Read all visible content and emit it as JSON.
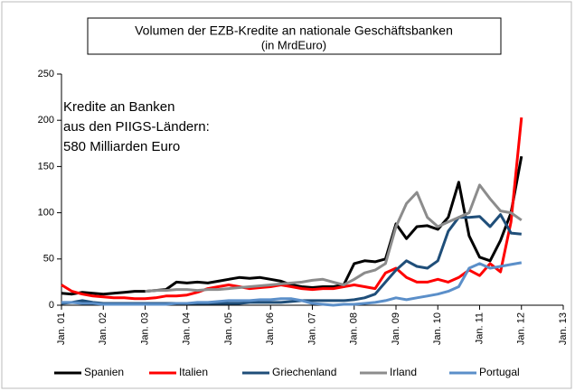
{
  "chart_data": {
    "type": "line",
    "title": [
      "Volumen der EZB-Kredite an nationale Geschäftsbanken",
      "(in MrdEuro)"
    ],
    "annotation": [
      "Kredite an Banken",
      "aus den PIIGS-Ländern:",
      "580 Milliarden Euro"
    ],
    "categories": [
      "Jan. 01",
      null,
      null,
      null,
      "Jan. 02",
      null,
      null,
      null,
      "Jan. 03",
      null,
      null,
      null,
      "Jan. 04",
      null,
      null,
      null,
      "Jan. 05",
      null,
      null,
      null,
      "Jan. 06",
      null,
      null,
      null,
      "Jan. 07",
      null,
      null,
      null,
      "Jan. 08",
      null,
      null,
      null,
      "Jan. 09",
      null,
      null,
      null,
      "Jan. 10",
      null,
      null,
      null,
      "Jan. 11",
      null,
      null,
      null,
      "Jan. 12",
      null,
      null,
      null,
      "Jan. 13"
    ],
    "series": [
      {
        "name": "Spanien",
        "color": "#000000",
        "values": [
          13,
          12,
          14,
          13,
          12,
          13,
          14,
          15,
          15,
          16,
          17,
          25,
          24,
          25,
          24,
          26,
          28,
          30,
          29,
          30,
          28,
          26,
          22,
          20,
          19,
          20,
          20,
          22,
          45,
          48,
          47,
          50,
          88,
          72,
          85,
          86,
          82,
          95,
          133,
          75,
          52,
          48,
          70,
          100,
          161,
          null,
          null,
          null,
          null
        ]
      },
      {
        "name": "Italien",
        "color": "#ff0000",
        "values": [
          22,
          15,
          12,
          10,
          9,
          8,
          8,
          7,
          7,
          8,
          10,
          10,
          11,
          14,
          18,
          20,
          22,
          20,
          18,
          19,
          20,
          22,
          20,
          18,
          17,
          18,
          18,
          20,
          22,
          20,
          18,
          35,
          40,
          30,
          25,
          25,
          28,
          25,
          30,
          38,
          32,
          45,
          36,
          90,
          203,
          null,
          null,
          null,
          null
        ]
      },
      {
        "name": "Griechenland",
        "color": "#1f4e79",
        "values": [
          2,
          3,
          5,
          3,
          2,
          2,
          2,
          2,
          2,
          2,
          2,
          2,
          2,
          2,
          2,
          2,
          2,
          2,
          3,
          3,
          3,
          3,
          4,
          5,
          5,
          5,
          5,
          5,
          6,
          8,
          12,
          25,
          38,
          48,
          42,
          40,
          48,
          80,
          95,
          95,
          96,
          85,
          98,
          78,
          77,
          null,
          null,
          null,
          null
        ]
      },
      {
        "name": "Irland",
        "color": "#8c8c8c",
        "values": [
          null,
          null,
          null,
          null,
          null,
          null,
          null,
          null,
          15,
          16,
          16,
          17,
          17,
          16,
          17,
          17,
          18,
          19,
          20,
          21,
          22,
          23,
          24,
          25,
          27,
          28,
          25,
          22,
          28,
          35,
          38,
          45,
          85,
          110,
          122,
          95,
          85,
          90,
          95,
          100,
          130,
          115,
          102,
          100,
          92,
          null,
          null,
          null,
          null
        ]
      },
      {
        "name": "Portugal",
        "color": "#5b8fc9",
        "values": [
          3,
          3,
          2,
          2,
          1,
          1,
          1,
          1,
          1,
          1,
          1,
          2,
          2,
          3,
          3,
          4,
          5,
          5,
          5,
          6,
          6,
          7,
          7,
          5,
          2,
          1,
          0,
          1,
          1,
          2,
          3,
          5,
          8,
          6,
          8,
          10,
          12,
          15,
          20,
          40,
          45,
          40,
          42,
          44,
          46,
          null,
          null,
          null,
          null
        ]
      }
    ],
    "ylim": [
      0,
      250
    ],
    "yticks": [
      0,
      50,
      100,
      150,
      200,
      250
    ],
    "grid": false
  }
}
